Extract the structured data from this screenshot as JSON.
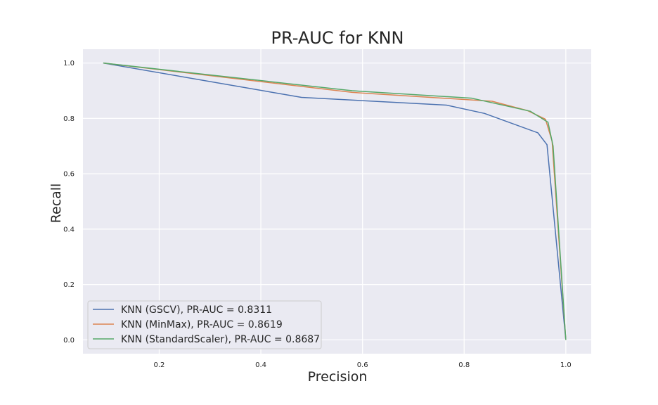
{
  "chart_data": {
    "type": "line",
    "title": "PR-AUC for KNN",
    "xlabel": "Precision",
    "ylabel": "Recall",
    "xlim": [
      0.05,
      1.05
    ],
    "ylim": [
      -0.05,
      1.05
    ],
    "xticks": [
      0.2,
      0.4,
      0.6,
      0.8,
      1.0
    ],
    "xtick_labels": [
      "0.2",
      "0.4",
      "0.6",
      "0.8",
      "1.0"
    ],
    "yticks": [
      0.0,
      0.2,
      0.4,
      0.6,
      0.8,
      1.0
    ],
    "ytick_labels": [
      "0.0",
      "0.2",
      "0.4",
      "0.6",
      "0.8",
      "1.0"
    ],
    "grid": true,
    "legend_position": "lower-left",
    "background": "#eaeaf2",
    "series": [
      {
        "name": "KNN (GSCV), PR-AUC = 0.8311",
        "color": "#4c72b0",
        "x": [
          0.09,
          0.48,
          0.765,
          0.84,
          0.945,
          0.963,
          1.0
        ],
        "y": [
          1.0,
          0.876,
          0.848,
          0.818,
          0.748,
          0.705,
          0.0
        ]
      },
      {
        "name": "KNN (MinMax), PR-AUC = 0.8619",
        "color": "#dd8452",
        "x": [
          0.09,
          0.58,
          0.855,
          0.925,
          0.96,
          0.973,
          1.0
        ],
        "y": [
          1.0,
          0.894,
          0.862,
          0.828,
          0.797,
          0.718,
          0.0
        ]
      },
      {
        "name": "KNN (StandardScaler), PR-AUC = 0.8687",
        "color": "#55a868",
        "x": [
          0.09,
          0.58,
          0.815,
          0.93,
          0.965,
          0.975,
          1.0
        ],
        "y": [
          1.0,
          0.9,
          0.873,
          0.826,
          0.786,
          0.7,
          0.0
        ]
      }
    ]
  }
}
